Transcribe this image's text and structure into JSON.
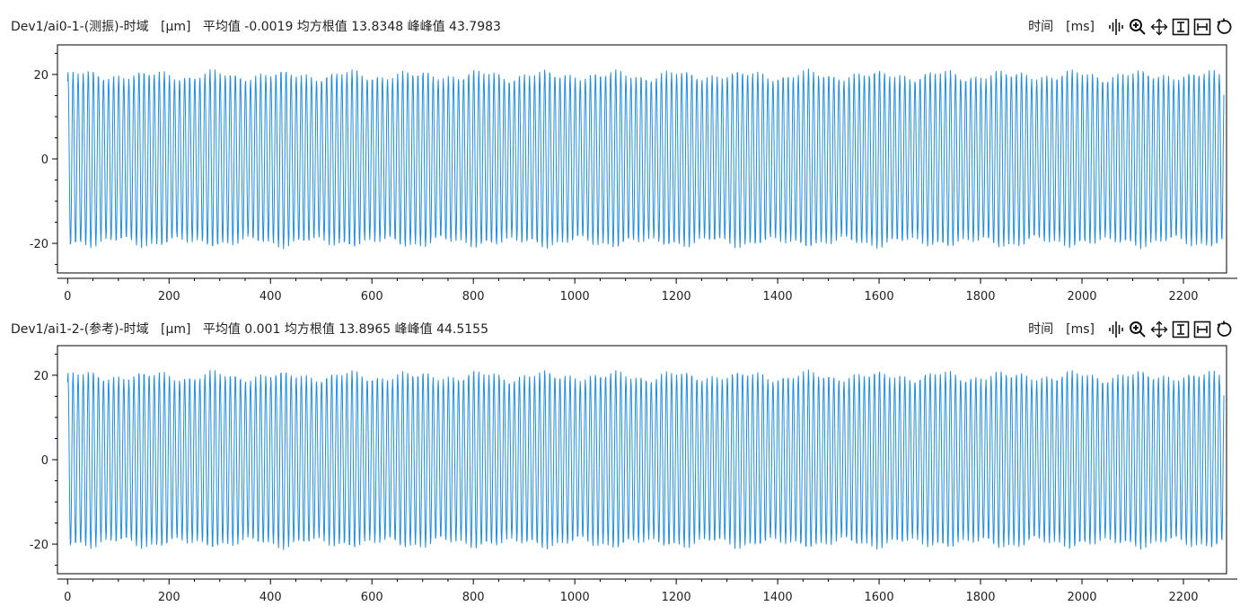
{
  "colors": {
    "series": "#1f8ee0",
    "axis": "#000000",
    "background": "#ffffff"
  },
  "icons": [
    "waveform-icon",
    "zoom-in-icon",
    "pan-icon",
    "vertical-cursor-icon",
    "horizontal-cursor-icon",
    "reset-icon"
  ],
  "panels": [
    {
      "title": "Dev1/ai0-1-(测振)-时域",
      "unit": "[μm]",
      "stats": "平均值 -0.0019 均方根值 13.8348 峰峰值 43.7983",
      "x_label": "时间",
      "x_unit": "[ms]"
    },
    {
      "title": "Dev1/ai1-2-(参考)-时域",
      "unit": "[μm]",
      "stats": "平均值 0.001 均方根值 13.8965 峰峰值 44.5155",
      "x_label": "时间",
      "x_unit": "[ms]"
    }
  ],
  "chart_data": [
    {
      "type": "line",
      "title": "Dev1/ai0-1-(测振)-时域",
      "xlabel": "时间 [ms]",
      "ylabel": "[μm]",
      "xlim": [
        -20,
        2285
      ],
      "ylim": [
        -27,
        27
      ],
      "x_ticks": [
        "0",
        "200",
        "400",
        "600",
        "800",
        "1000",
        "1200",
        "1400",
        "1600",
        "1800",
        "2000",
        "2200"
      ],
      "y_ticks": [
        "-20",
        "0",
        "20"
      ],
      "signal": {
        "kind": "sinusoid",
        "frequency_hz": 100,
        "amplitude": 20,
        "mean": -0.0019,
        "rms": 13.8348,
        "peak_to_peak": 43.7983,
        "x_range": [
          0,
          2280
        ]
      },
      "grid": false,
      "legend": "none"
    },
    {
      "type": "line",
      "title": "Dev1/ai1-2-(参考)-时域",
      "xlabel": "时间 [ms]",
      "ylabel": "[μm]",
      "xlim": [
        -20,
        2285
      ],
      "ylim": [
        -27,
        27
      ],
      "x_ticks": [
        "0",
        "200",
        "400",
        "600",
        "800",
        "1000",
        "1200",
        "1400",
        "1600",
        "1800",
        "2000",
        "2200"
      ],
      "y_ticks": [
        "-20",
        "0",
        "20"
      ],
      "signal": {
        "kind": "sinusoid",
        "frequency_hz": 100,
        "amplitude": 20,
        "mean": 0.001,
        "rms": 13.8965,
        "peak_to_peak": 44.5155,
        "x_range": [
          0,
          2280
        ]
      },
      "grid": false,
      "legend": "none"
    }
  ]
}
